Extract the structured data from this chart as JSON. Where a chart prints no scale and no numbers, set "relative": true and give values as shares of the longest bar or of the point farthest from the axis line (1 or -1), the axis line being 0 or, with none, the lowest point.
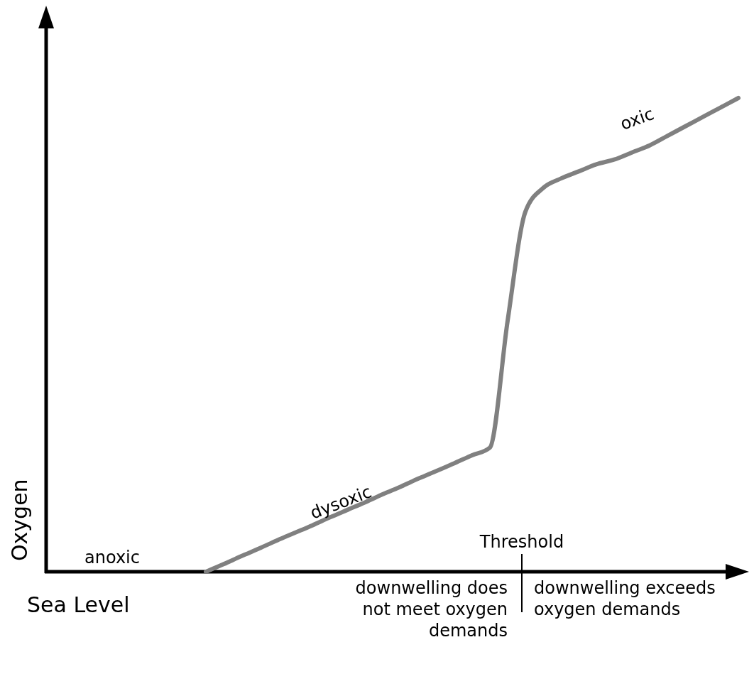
{
  "chart_data": {
    "type": "line",
    "relative": true,
    "xlabel": "Sea Level",
    "ylabel": "Oxygen",
    "color": "#808080",
    "categories": [
      null,
      null,
      null,
      null,
      null,
      null,
      null,
      null,
      null,
      null,
      null,
      null,
      null,
      null,
      null,
      null,
      null,
      null,
      null,
      null,
      null,
      null,
      null,
      null,
      null,
      null,
      null,
      null,
      null,
      null,
      null,
      null,
      null,
      null,
      null,
      null,
      null,
      null,
      null,
      null
    ],
    "values": [
      null,
      null,
      null,
      null,
      null,
      null,
      null,
      null,
      null,
      0,
      0.016,
      0.033,
      0.049,
      0.066,
      0.082,
      0.098,
      0.115,
      0.131,
      0.147,
      0.164,
      0.18,
      0.197,
      0.213,
      0.229,
      0.246,
      0.262,
      0.53,
      0.76,
      0.81,
      0.83,
      0.845,
      0.86,
      0.87,
      0.885,
      0.9,
      0.92,
      0.94,
      0.96,
      0.98,
      1
    ],
    "annotations": [
      "anoxic",
      "dysoxic",
      "oxic",
      "Threshold",
      "downwelling does not meet oxygen demands",
      "downwelling exceeds oxygen demands"
    ]
  }
}
